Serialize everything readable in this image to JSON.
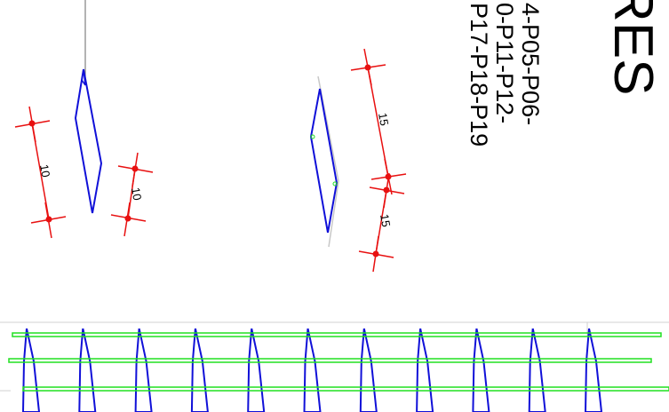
{
  "drawing": {
    "title_fragment": "RES",
    "label_lines": [
      "4-P05-P06-",
      "0-P11-P12-",
      "P17-P18-P19"
    ],
    "dimensions": {
      "left_long": "10",
      "left_short": "10",
      "right_upper": "15",
      "right_lower": "15"
    }
  },
  "colors": {
    "stirrup": "#1010d8",
    "longitudinal_bar": "#20e020",
    "dimension": "#e81010",
    "leader": "#808080",
    "faint": "#c8c8c8",
    "text": "#000000"
  },
  "elevation": {
    "stirrup_count": 11,
    "bar_count": 3
  }
}
